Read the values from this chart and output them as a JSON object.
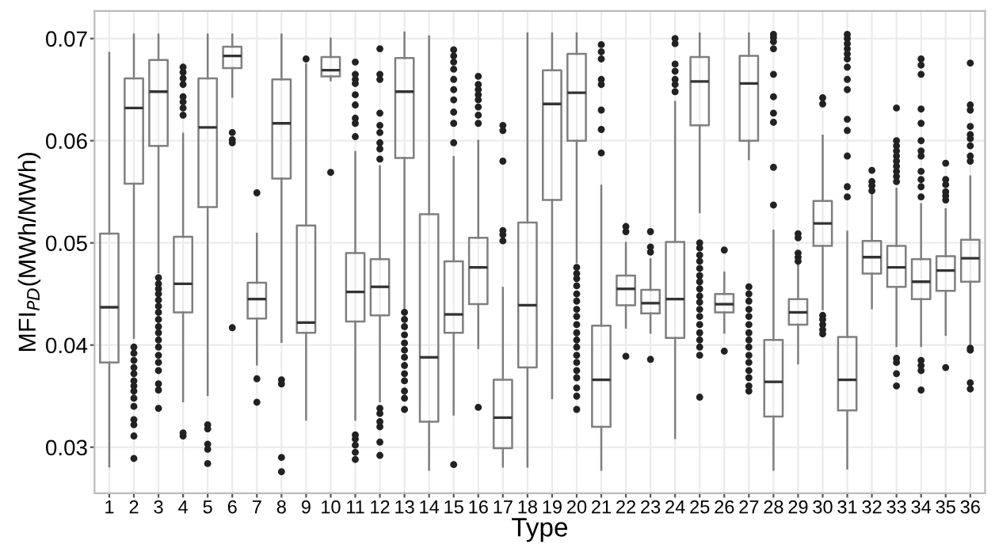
{
  "chart_data": {
    "type": "box",
    "xlabel": "Type",
    "ylabel": "MFI$_{PD}$(MWh/MWh)",
    "categories": [
      "1",
      "2",
      "3",
      "4",
      "5",
      "6",
      "7",
      "8",
      "9",
      "10",
      "11",
      "12",
      "13",
      "14",
      "15",
      "16",
      "17",
      "18",
      "19",
      "20",
      "21",
      "22",
      "23",
      "24",
      "25",
      "26",
      "27",
      "28",
      "29",
      "30",
      "31",
      "32",
      "33",
      "34",
      "35",
      "36"
    ],
    "ylim": [
      0.0255,
      0.0727
    ],
    "yticks": [
      0.03,
      0.04,
      0.05,
      0.06,
      0.07
    ],
    "grid": true,
    "color": "#7f7f7f",
    "boxes": [
      {
        "low": 0.0281,
        "q1": 0.0383,
        "median": 0.0437,
        "q3": 0.0509,
        "high": 0.0686
      },
      {
        "low": 0.0407,
        "q1": 0.0558,
        "median": 0.0632,
        "q3": 0.0661,
        "high": 0.0704,
        "outliers": [
          0.0398,
          0.0392,
          0.0385,
          0.0378,
          0.0372,
          0.0365,
          0.036,
          0.0355,
          0.0348,
          0.034,
          0.0327,
          0.0322,
          0.0311,
          0.0289
        ]
      },
      {
        "low": 0.0471,
        "q1": 0.0595,
        "median": 0.0648,
        "q3": 0.0679,
        "high": 0.0704,
        "outliers": [
          0.0466,
          0.046,
          0.0455,
          0.045,
          0.0444,
          0.0438,
          0.0432,
          0.0425,
          0.0418,
          0.0412,
          0.0405,
          0.0398,
          0.039,
          0.0383,
          0.0375,
          0.0362,
          0.0356,
          0.0338
        ]
      },
      {
        "low": 0.0345,
        "q1": 0.0432,
        "median": 0.046,
        "q3": 0.0506,
        "high": 0.0607,
        "outliers": [
          0.0625,
          0.0632,
          0.0638,
          0.0643,
          0.0655,
          0.0661,
          0.0667,
          0.0672,
          0.0314,
          0.0311
        ]
      },
      {
        "low": 0.0351,
        "q1": 0.0535,
        "median": 0.0613,
        "q3": 0.0661,
        "high": 0.0704,
        "outliers": [
          0.0322,
          0.0318,
          0.0303,
          0.0298,
          0.0284
        ]
      },
      {
        "low": 0.0643,
        "q1": 0.0671,
        "median": 0.0683,
        "q3": 0.0692,
        "high": 0.0704,
        "outliers": [
          0.0608,
          0.0601,
          0.0598,
          0.0417
        ]
      },
      {
        "low": 0.0381,
        "q1": 0.0426,
        "median": 0.0445,
        "q3": 0.0461,
        "high": 0.0509,
        "outliers": [
          0.0549,
          0.0367,
          0.0344
        ]
      },
      {
        "low": 0.0403,
        "q1": 0.0563,
        "median": 0.0617,
        "q3": 0.066,
        "high": 0.0704,
        "outliers": [
          0.0366,
          0.0362,
          0.029,
          0.0276
        ]
      },
      {
        "low": 0.0327,
        "q1": 0.0412,
        "median": 0.0422,
        "q3": 0.0517,
        "high": 0.0675,
        "outliers": [
          0.068
        ]
      },
      {
        "low": 0.0659,
        "q1": 0.0663,
        "median": 0.0669,
        "q3": 0.0682,
        "high": 0.07,
        "outliers": [
          0.0569
        ]
      },
      {
        "low": 0.0327,
        "q1": 0.0423,
        "median": 0.0452,
        "q3": 0.049,
        "high": 0.0589,
        "outliers": [
          0.0677,
          0.0665,
          0.066,
          0.0656,
          0.0645,
          0.0635,
          0.0622,
          0.0617,
          0.0604,
          0.0312,
          0.0308,
          0.0302,
          0.0295,
          0.0288
        ]
      },
      {
        "low": 0.0345,
        "q1": 0.0429,
        "median": 0.0457,
        "q3": 0.0484,
        "high": 0.0575,
        "outliers": [
          0.069,
          0.0665,
          0.066,
          0.0627,
          0.0615,
          0.0608,
          0.0598,
          0.0592,
          0.0582,
          0.0338,
          0.0333,
          0.0325,
          0.032,
          0.0305,
          0.0292
        ]
      },
      {
        "low": 0.0435,
        "q1": 0.0583,
        "median": 0.0648,
        "q3": 0.0681,
        "high": 0.0706,
        "outliers": [
          0.0432,
          0.0425,
          0.0418,
          0.041,
          0.0402,
          0.0395,
          0.0388,
          0.038,
          0.0372,
          0.0365,
          0.0355,
          0.0348,
          0.0337
        ]
      },
      {
        "low": 0.0278,
        "q1": 0.0325,
        "median": 0.0388,
        "q3": 0.0528,
        "high": 0.0702
      },
      {
        "low": 0.0332,
        "q1": 0.0412,
        "median": 0.043,
        "q3": 0.0482,
        "high": 0.0584,
        "outliers": [
          0.0689,
          0.0683,
          0.0677,
          0.067,
          0.066,
          0.065,
          0.064,
          0.0628,
          0.0617,
          0.0598,
          0.0283
        ]
      },
      {
        "low": 0.0397,
        "q1": 0.044,
        "median": 0.0476,
        "q3": 0.0505,
        "high": 0.06,
        "outliers": [
          0.0663,
          0.0655,
          0.065,
          0.0645,
          0.064,
          0.0633,
          0.0625,
          0.0617,
          0.0339
        ]
      },
      {
        "low": 0.0281,
        "q1": 0.0299,
        "median": 0.0329,
        "q3": 0.0366,
        "high": 0.0456,
        "outliers": [
          0.0615,
          0.061,
          0.058,
          0.0512,
          0.0508,
          0.0502
        ]
      },
      {
        "low": 0.0281,
        "q1": 0.0378,
        "median": 0.0439,
        "q3": 0.052,
        "high": 0.0705
      },
      {
        "low": 0.0348,
        "q1": 0.0542,
        "median": 0.0636,
        "q3": 0.0669,
        "high": 0.0705
      },
      {
        "low": 0.0481,
        "q1": 0.06,
        "median": 0.0647,
        "q3": 0.0685,
        "high": 0.0705,
        "outliers": [
          0.0476,
          0.047,
          0.0465,
          0.0458,
          0.045,
          0.0443,
          0.0435,
          0.0428,
          0.042,
          0.0412,
          0.0405,
          0.0398,
          0.039,
          0.0383,
          0.0375,
          0.0368,
          0.0358,
          0.035,
          0.0337
        ]
      },
      {
        "low": 0.0278,
        "q1": 0.032,
        "median": 0.0366,
        "q3": 0.0419,
        "high": 0.0556,
        "outliers": [
          0.0694,
          0.0687,
          0.068,
          0.066,
          0.0655,
          0.063,
          0.0611,
          0.0588
        ]
      },
      {
        "low": 0.0417,
        "q1": 0.0439,
        "median": 0.0455,
        "q3": 0.0468,
        "high": 0.05,
        "outliers": [
          0.0516,
          0.0511,
          0.0389
        ]
      },
      {
        "low": 0.0412,
        "q1": 0.0431,
        "median": 0.0441,
        "q3": 0.0454,
        "high": 0.0484,
        "outliers": [
          0.0511,
          0.0496,
          0.0491,
          0.0386
        ]
      },
      {
        "low": 0.0309,
        "q1": 0.0407,
        "median": 0.0445,
        "q3": 0.0501,
        "high": 0.0638,
        "outliers": [
          0.07,
          0.0695,
          0.0675,
          0.0668,
          0.066,
          0.0655,
          0.0648
        ]
      },
      {
        "low": 0.053,
        "q1": 0.0615,
        "median": 0.0658,
        "q3": 0.0682,
        "high": 0.0705,
        "outliers": [
          0.05,
          0.0495,
          0.0488,
          0.0482,
          0.0475,
          0.0468,
          0.0462,
          0.0455,
          0.0448,
          0.0442,
          0.0435,
          0.0428,
          0.042,
          0.0412,
          0.0405,
          0.0398,
          0.039,
          0.0349
        ]
      },
      {
        "low": 0.0412,
        "q1": 0.0432,
        "median": 0.044,
        "q3": 0.045,
        "high": 0.0471,
        "outliers": [
          0.0493,
          0.0394
        ]
      },
      {
        "low": 0.0582,
        "q1": 0.06,
        "median": 0.0656,
        "q3": 0.0683,
        "high": 0.0705,
        "outliers": [
          0.0457,
          0.045,
          0.0443,
          0.0435,
          0.0428,
          0.042,
          0.0412,
          0.0405,
          0.0398,
          0.039,
          0.0383,
          0.0375,
          0.0368,
          0.036,
          0.0355
        ]
      },
      {
        "low": 0.0278,
        "q1": 0.033,
        "median": 0.0364,
        "q3": 0.0405,
        "high": 0.0512,
        "outliers": [
          0.0704,
          0.0701,
          0.0697,
          0.069,
          0.0665,
          0.0643,
          0.0627,
          0.0618,
          0.0574,
          0.0537
        ]
      },
      {
        "low": 0.0382,
        "q1": 0.042,
        "median": 0.0432,
        "q3": 0.0445,
        "high": 0.048,
        "outliers": [
          0.0509,
          0.0505,
          0.049,
          0.0486,
          0.0482
        ]
      },
      {
        "low": 0.0435,
        "q1": 0.0497,
        "median": 0.0519,
        "q3": 0.0541,
        "high": 0.0605,
        "outliers": [
          0.0642,
          0.0636,
          0.0429,
          0.0425,
          0.042,
          0.0415,
          0.0411
        ]
      },
      {
        "low": 0.0279,
        "q1": 0.0336,
        "median": 0.0366,
        "q3": 0.0408,
        "high": 0.0511,
        "outliers": [
          0.0704,
          0.07,
          0.0695,
          0.069,
          0.0685,
          0.068,
          0.0672,
          0.066,
          0.065,
          0.0621,
          0.061,
          0.0585,
          0.0555,
          0.0545
        ]
      },
      {
        "low": 0.0436,
        "q1": 0.047,
        "median": 0.0486,
        "q3": 0.0502,
        "high": 0.0548,
        "outliers": [
          0.0571,
          0.056,
          0.0556,
          0.0551
        ]
      },
      {
        "low": 0.0399,
        "q1": 0.0457,
        "median": 0.0476,
        "q3": 0.0497,
        "high": 0.0553,
        "outliers": [
          0.0632,
          0.06,
          0.0595,
          0.059,
          0.0585,
          0.058,
          0.0575,
          0.057,
          0.0565,
          0.056,
          0.0387,
          0.0383,
          0.0372,
          0.036
        ]
      },
      {
        "low": 0.0399,
        "q1": 0.0445,
        "median": 0.0462,
        "q3": 0.0484,
        "high": 0.0538,
        "outliers": [
          0.068,
          0.0674,
          0.0665,
          0.0631,
          0.0617,
          0.06,
          0.059,
          0.0585,
          0.057,
          0.0562,
          0.0555,
          0.0545,
          0.0385,
          0.038,
          0.0375,
          0.0356
        ]
      },
      {
        "low": 0.041,
        "q1": 0.0453,
        "median": 0.0473,
        "q3": 0.0487,
        "high": 0.0533,
        "outliers": [
          0.0578,
          0.0562,
          0.0557,
          0.055,
          0.0546,
          0.0542,
          0.0378
        ]
      },
      {
        "low": 0.0399,
        "q1": 0.0462,
        "median": 0.0485,
        "q3": 0.0503,
        "high": 0.0565,
        "outliers": [
          0.0676,
          0.0635,
          0.063,
          0.0614,
          0.0606,
          0.0602,
          0.0595,
          0.0585,
          0.058,
          0.0397,
          0.0395,
          0.0363,
          0.0357
        ]
      }
    ]
  }
}
